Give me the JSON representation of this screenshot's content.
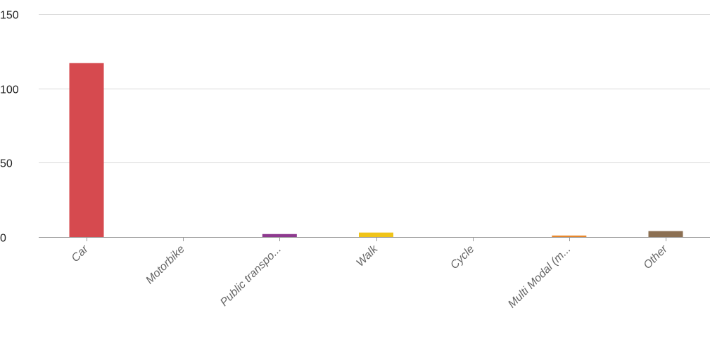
{
  "chart_data": {
    "type": "bar",
    "title": "",
    "xlabel": "",
    "ylabel": "",
    "categories": [
      "Car",
      "Motorbike",
      "Public transpo...",
      "Walk",
      "Cycle",
      "Multi Modal (m...",
      "Other"
    ],
    "values": [
      117,
      0,
      2,
      3,
      0,
      1,
      4
    ],
    "colors": [
      "#d64a4f",
      "#888888",
      "#8e3a8f",
      "#f0c419",
      "#888888",
      "#e8862a",
      "#8b6f52"
    ],
    "ylim": [
      0,
      150
    ],
    "yticks": [
      0,
      50,
      100,
      150
    ],
    "ytick_labels": [
      "0",
      "50",
      "100",
      "150"
    ],
    "grid": true,
    "legend": "none"
  }
}
